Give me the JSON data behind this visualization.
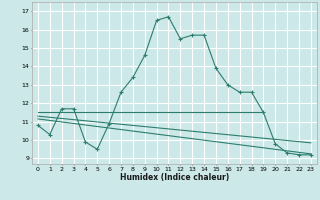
{
  "xlabel": "Humidex (Indice chaleur)",
  "background_color": "#cce8e8",
  "grid_color": "#ffffff",
  "line_color": "#2d7d6e",
  "xlim": [
    -0.5,
    23.5
  ],
  "ylim": [
    8.7,
    17.5
  ],
  "xticks": [
    0,
    1,
    2,
    3,
    4,
    5,
    6,
    7,
    8,
    9,
    10,
    11,
    12,
    13,
    14,
    15,
    16,
    17,
    18,
    19,
    20,
    21,
    22,
    23
  ],
  "yticks": [
    9,
    10,
    11,
    12,
    13,
    14,
    15,
    16,
    17
  ],
  "series1_x": [
    0,
    1,
    2,
    3,
    4,
    5,
    6,
    7,
    8,
    9,
    10,
    11,
    12,
    13,
    14,
    15,
    16,
    17,
    18,
    19,
    20,
    21,
    22,
    23
  ],
  "series1_y": [
    10.8,
    10.3,
    11.7,
    11.7,
    9.9,
    9.5,
    10.9,
    12.6,
    13.4,
    14.6,
    16.5,
    16.7,
    15.5,
    15.7,
    15.7,
    13.9,
    13.0,
    12.6,
    12.6,
    11.5,
    9.8,
    9.3,
    9.2,
    9.2
  ],
  "series2_x": [
    0,
    19
  ],
  "series2_y": [
    11.55,
    11.55
  ],
  "series3_x": [
    0,
    23
  ],
  "series3_y": [
    11.3,
    9.85
  ],
  "series4_x": [
    0,
    23
  ],
  "series4_y": [
    11.15,
    9.25
  ]
}
